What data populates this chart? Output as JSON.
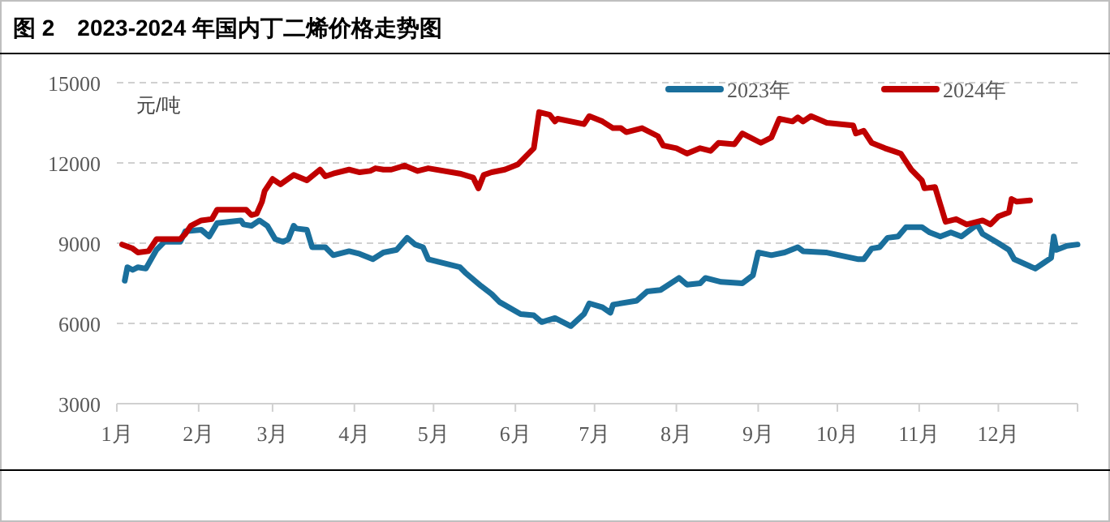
{
  "chart_data": {
    "type": "line",
    "title": "图 2　2023-2024 年国内丁二烯价格走势图",
    "ylabel": "元/吨",
    "legend": "top",
    "grid": "y",
    "marker": "none",
    "line_style": "solid",
    "xlim": [
      "--01-01",
      "--12-31"
    ],
    "xticks": [
      {
        "value": "--01-01",
        "label": "1月"
      },
      {
        "value": "--02-01",
        "label": "2月"
      },
      {
        "value": "--03-01",
        "label": "3月"
      },
      {
        "value": "--04-01",
        "label": "4月"
      },
      {
        "value": "--05-01",
        "label": "5月"
      },
      {
        "value": "--06-01",
        "label": "6月"
      },
      {
        "value": "--07-01",
        "label": "7月"
      },
      {
        "value": "--08-01",
        "label": "8月"
      },
      {
        "value": "--09-01",
        "label": "9月"
      },
      {
        "value": "--10-01",
        "label": "10月"
      },
      {
        "value": "--11-01",
        "label": "11月"
      },
      {
        "value": "--12-01",
        "label": "12月"
      }
    ],
    "ylim": [
      3000,
      15000
    ],
    "yticks": [
      3000,
      6000,
      9000,
      12000,
      15000
    ],
    "series": [
      {
        "name": "2023年",
        "color": "#1a6f9c",
        "x": [
          "--01-04",
          "--01-05",
          "--01-07",
          "--01-09",
          "--01-12",
          "--01-16",
          "--01-19",
          "--01-25",
          "--01-27",
          "--02-02",
          "--02-05",
          "--02-08",
          "--02-17",
          "--02-18",
          "--02-21",
          "--02-24",
          "--02-27",
          "--03-02",
          "--03-05",
          "--03-07",
          "--03-09",
          "--03-10",
          "--03-14",
          "--03-16",
          "--03-21",
          "--03-24",
          "--03-30",
          "--04-03",
          "--04-08",
          "--04-12",
          "--04-17",
          "--04-21",
          "--04-24",
          "--04-27",
          "--04-29",
          "--05-07",
          "--05-11",
          "--05-13",
          "--05-19",
          "--05-23",
          "--05-26",
          "--06-03",
          "--06-08",
          "--06-11",
          "--06-16",
          "--06-22",
          "--06-27",
          "--06-29",
          "--07-04",
          "--07-07",
          "--07-08",
          "--07-17",
          "--07-21",
          "--07-26",
          "--08-02",
          "--08-05",
          "--08-10",
          "--08-12",
          "--08-18",
          "--08-26",
          "--08-30",
          "--09-01",
          "--09-06",
          "--09-11",
          "--09-16",
          "--09-18",
          "--09-27",
          "--10-09",
          "--10-11",
          "--10-14",
          "--10-17",
          "--10-20",
          "--10-24",
          "--10-27",
          "--11-02",
          "--11-05",
          "--11-09",
          "--11-13",
          "--11-17",
          "--11-23",
          "--11-25",
          "--12-01",
          "--12-05",
          "--12-07",
          "--12-15",
          "--12-18",
          "--12-21",
          "--12-22",
          "--12-23",
          "--12-27",
          "--12-31"
        ],
        "values": [
          7600,
          8100,
          8000,
          8100,
          8050,
          8750,
          9050,
          9050,
          9450,
          9500,
          9250,
          9750,
          9850,
          9700,
          9650,
          9850,
          9650,
          9150,
          9050,
          9150,
          9650,
          9550,
          9500,
          8850,
          8850,
          8550,
          8700,
          8600,
          8400,
          8650,
          8750,
          9200,
          8950,
          8850,
          8400,
          8200,
          8100,
          7900,
          7400,
          7100,
          6800,
          6350,
          6300,
          6050,
          6200,
          5900,
          6350,
          6750,
          6600,
          6400,
          6700,
          6850,
          7200,
          7250,
          7700,
          7450,
          7500,
          7700,
          7550,
          7500,
          7800,
          8650,
          8550,
          8650,
          8850,
          8700,
          8650,
          8400,
          8400,
          8800,
          8850,
          9200,
          9250,
          9600,
          9600,
          9400,
          9250,
          9400,
          9250,
          9700,
          9350,
          9000,
          8750,
          8400,
          8050,
          8250,
          8450,
          9250,
          8750,
          8900,
          8950
        ]
      },
      {
        "name": "2024年",
        "color": "#c00000",
        "x": [
          "--01-03",
          "--01-07",
          "--01-09",
          "--01-13",
          "--01-16",
          "--01-25",
          "--01-27",
          "--01-29",
          "--02-02",
          "--02-06",
          "--02-08",
          "--02-19",
          "--02-21",
          "--02-23",
          "--02-25",
          "--02-26",
          "--03-01",
          "--03-04",
          "--03-09",
          "--03-14",
          "--03-19",
          "--03-21",
          "--03-24",
          "--03-30",
          "--04-03",
          "--04-07",
          "--04-09",
          "--04-12",
          "--04-15",
          "--04-20",
          "--04-25",
          "--04-29",
          "--05-11",
          "--05-16",
          "--05-18",
          "--05-20",
          "--05-23",
          "--05-28",
          "--06-02",
          "--06-08",
          "--06-10",
          "--06-14",
          "--06-16",
          "--06-17",
          "--06-27",
          "--06-29",
          "--07-04",
          "--07-08",
          "--07-11",
          "--07-13",
          "--07-19",
          "--07-25",
          "--07-27",
          "--08-01",
          "--08-05",
          "--08-10",
          "--08-14",
          "--08-17",
          "--08-23",
          "--08-26",
          "--09-02",
          "--09-06",
          "--09-09",
          "--09-14",
          "--09-16",
          "--09-18",
          "--09-21",
          "--09-27",
          "--10-07",
          "--10-08",
          "--10-11",
          "--10-14",
          "--10-19",
          "--10-22",
          "--10-25",
          "--10-29",
          "--11-02",
          "--11-03",
          "--11-07",
          "--11-09",
          "--11-11",
          "--11-15",
          "--11-19",
          "--11-25",
          "--11-28",
          "--12-01",
          "--12-05",
          "--12-06",
          "--12-08",
          "--12-13"
        ],
        "values": [
          8950,
          8800,
          8650,
          8700,
          9150,
          9150,
          9350,
          9650,
          9850,
          9900,
          10250,
          10250,
          10050,
          10100,
          10550,
          10950,
          11400,
          11200,
          11550,
          11350,
          11750,
          11500,
          11600,
          11750,
          11650,
          11700,
          11800,
          11750,
          11750,
          11900,
          11700,
          11800,
          11600,
          11450,
          11050,
          11550,
          11650,
          11750,
          11950,
          12550,
          13900,
          13800,
          13550,
          13650,
          13450,
          13750,
          13550,
          13300,
          13300,
          13150,
          13300,
          13000,
          12650,
          12550,
          12350,
          12550,
          12450,
          12750,
          12700,
          13100,
          12750,
          12950,
          13650,
          13550,
          13700,
          13550,
          13750,
          13500,
          13400,
          13100,
          13200,
          12750,
          12550,
          12450,
          12350,
          11750,
          11350,
          11050,
          11100,
          10450,
          9800,
          9900,
          9700,
          9850,
          9700,
          10000,
          10150,
          10650,
          10550,
          10600
        ]
      }
    ]
  }
}
